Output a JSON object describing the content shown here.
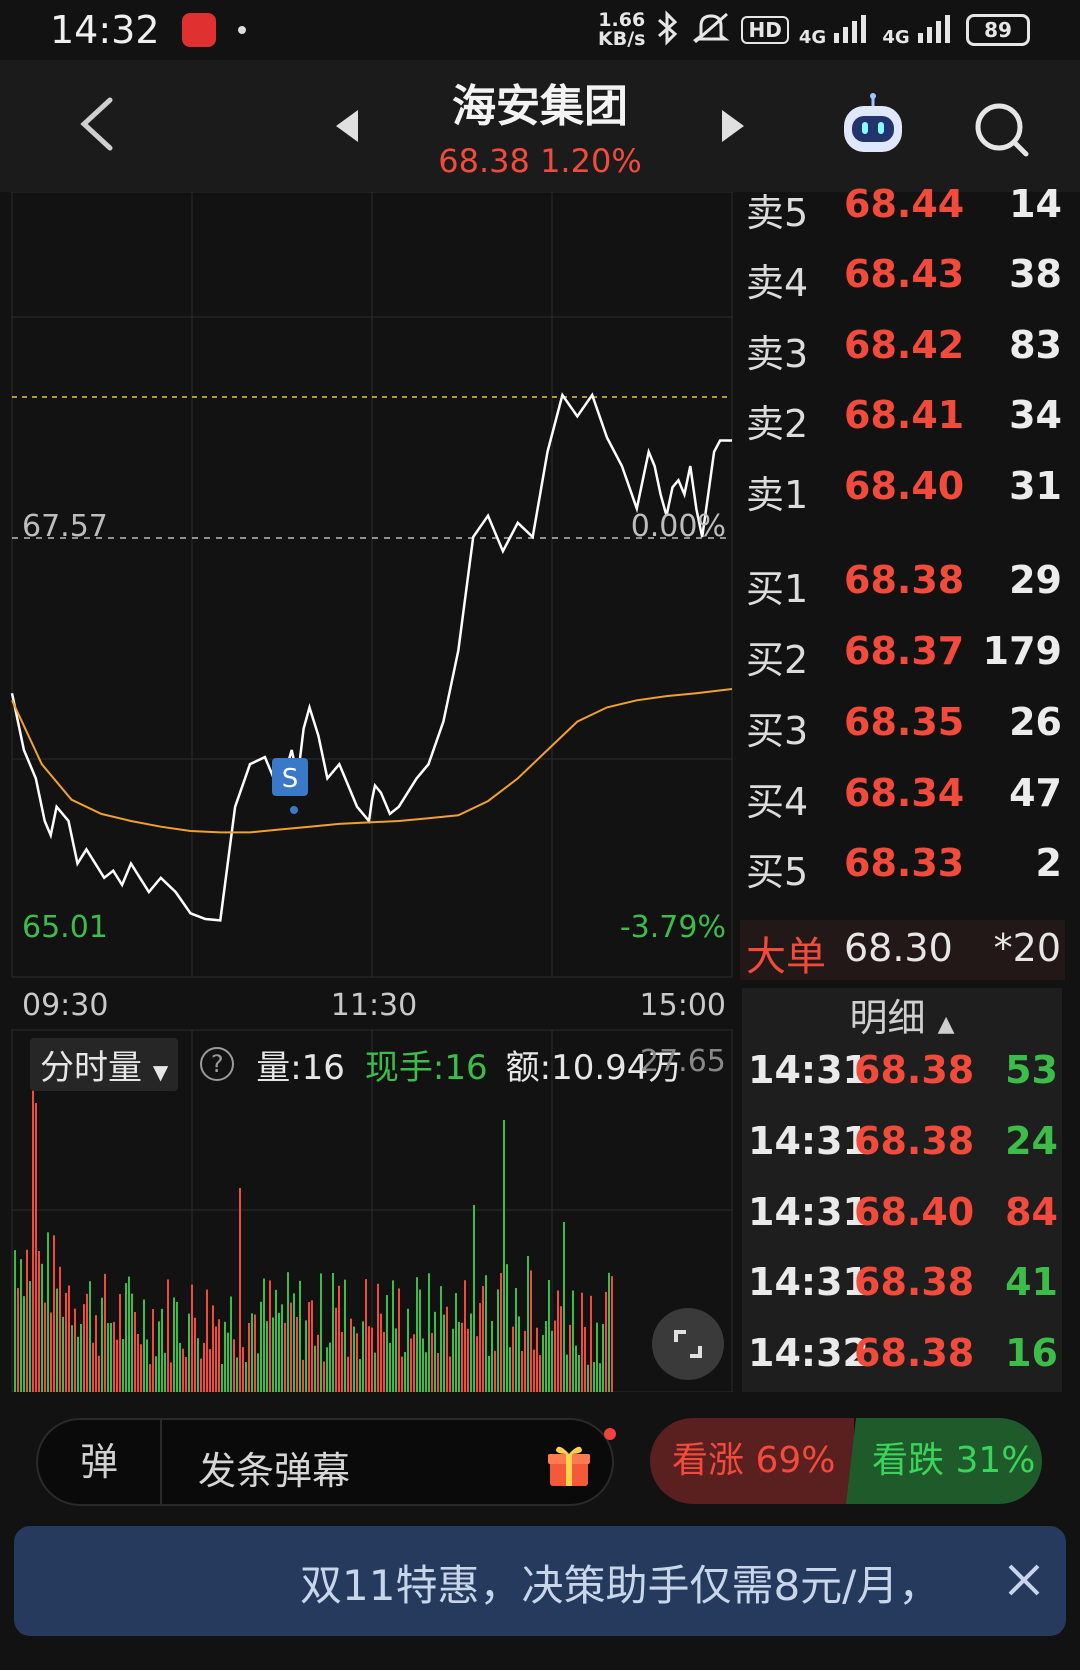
{
  "status_bar": {
    "time": "14:32",
    "net_speed_value": "1.66",
    "net_speed_unit": "KB/s",
    "hd": "HD",
    "net1": "4G",
    "net2": "4G",
    "battery": "89"
  },
  "header": {
    "stock_name": "海安集团",
    "price": "68.38",
    "change_pct": "1.20%"
  },
  "chart_data": {
    "type": "line",
    "x_labels": [
      "09:30",
      "11:30",
      "15:00"
    ],
    "prev_close_label": "67.57",
    "prev_close_pct": "0.00%",
    "low_label": "65.01",
    "low_pct": "-3.79%",
    "ylim": [
      65.01,
      70.13
    ],
    "trade_marker": "S",
    "series": [
      {
        "color": "#ffffff",
        "x": [
          0,
          4,
          8,
          11,
          13,
          15,
          19,
          22,
          25,
          28,
          31,
          34,
          37,
          40,
          43,
          46,
          50,
          55,
          60,
          65,
          70,
          75,
          80,
          85,
          88,
          90,
          92,
          94,
          96,
          98,
          100,
          103,
          106,
          110,
          113,
          116,
          120,
          121,
          122,
          124,
          127,
          130,
          133,
          136,
          140,
          145,
          150,
          155,
          160,
          165,
          170,
          175,
          180,
          185,
          190,
          195,
          200,
          205,
          210,
          212,
          214,
          216,
          218,
          220,
          222,
          224,
          226,
          228,
          230,
          232,
          234,
          236,
          238,
          240,
          242
        ],
        "y": [
          66.6,
          66.2,
          66.0,
          65.7,
          65.6,
          65.8,
          65.7,
          65.4,
          65.5,
          65.4,
          65.3,
          65.35,
          65.25,
          65.4,
          65.3,
          65.2,
          65.3,
          65.2,
          65.05,
          65.01,
          65.0,
          65.8,
          66.1,
          66.15,
          66.0,
          66.1,
          66.05,
          66.2,
          66.0,
          66.35,
          66.5,
          66.3,
          66.0,
          66.1,
          65.95,
          65.8,
          65.7,
          65.85,
          65.95,
          65.9,
          65.75,
          65.8,
          65.9,
          66.0,
          66.1,
          66.4,
          66.9,
          67.7,
          67.85,
          67.6,
          67.8,
          67.7,
          68.3,
          68.7,
          68.55,
          68.7,
          68.4,
          68.2,
          67.9,
          68.1,
          68.3,
          68.2,
          68.0,
          67.85,
          68.05,
          68.1,
          68.0,
          68.2,
          67.9,
          67.7,
          68.0,
          68.3,
          68.38,
          68.38,
          68.38
        ]
      },
      {
        "color": "#f0a030",
        "x": [
          0,
          10,
          20,
          30,
          40,
          50,
          60,
          70,
          80,
          90,
          100,
          110,
          120,
          130,
          140,
          150,
          160,
          170,
          180,
          190,
          200,
          210,
          220,
          230,
          242
        ],
        "y": [
          66.55,
          66.1,
          65.85,
          65.75,
          65.7,
          65.66,
          65.63,
          65.62,
          65.62,
          65.64,
          65.66,
          65.68,
          65.69,
          65.7,
          65.72,
          65.74,
          65.84,
          66.0,
          66.2,
          66.4,
          66.5,
          66.55,
          66.58,
          66.6,
          66.63
        ]
      }
    ]
  },
  "volume": {
    "selector": "分时量",
    "vol_label": "量:16",
    "cur_label": "现手:16",
    "amt_label": "额:10.94万",
    "right_value": "27.65"
  },
  "order_book": {
    "asks": [
      {
        "label": "卖5",
        "price": "68.44",
        "qty": "14"
      },
      {
        "label": "卖4",
        "price": "68.43",
        "qty": "38"
      },
      {
        "label": "卖3",
        "price": "68.42",
        "qty": "83"
      },
      {
        "label": "卖2",
        "price": "68.41",
        "qty": "34"
      },
      {
        "label": "卖1",
        "price": "68.40",
        "qty": "31"
      }
    ],
    "bids": [
      {
        "label": "买1",
        "price": "68.38",
        "qty": "29"
      },
      {
        "label": "买2",
        "price": "68.37",
        "qty": "179"
      },
      {
        "label": "买3",
        "price": "68.35",
        "qty": "26"
      },
      {
        "label": "买4",
        "price": "68.34",
        "qty": "47"
      },
      {
        "label": "买5",
        "price": "68.33",
        "qty": "2"
      }
    ],
    "big_order": {
      "label": "大单",
      "price": "68.30",
      "qty": "*20"
    }
  },
  "detail": {
    "title": "明细",
    "rows": [
      {
        "time": "14:31",
        "price": "68.38",
        "vol": "53",
        "color": "#3cbd4a"
      },
      {
        "time": "14:31",
        "price": "68.38",
        "vol": "24",
        "color": "#3cbd4a"
      },
      {
        "time": "14:31",
        "price": "68.40",
        "vol": "84",
        "color": "#f24b3c"
      },
      {
        "time": "14:31",
        "price": "68.38",
        "vol": "41",
        "color": "#3cbd4a"
      },
      {
        "time": "14:32",
        "price": "68.38",
        "vol": "16",
        "color": "#3cbd4a"
      }
    ]
  },
  "bottom": {
    "barrage_icon": "弹",
    "barrage_placeholder": "发条弹幕",
    "up_label": "看涨",
    "up_pct": "69%",
    "down_label": "看跌",
    "down_pct": "31%"
  },
  "promo": {
    "text": "双11特惠，决策助手仅需8元/月，"
  },
  "colors": {
    "up": "#f24b3c",
    "down": "#3cbd4a",
    "avg": "#f0a030",
    "price_line": "#ffffff"
  }
}
